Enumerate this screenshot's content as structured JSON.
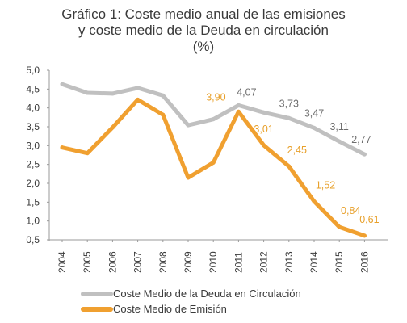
{
  "chart_data": {
    "type": "line",
    "title_line1": "Gráfico 1: Coste medio anual de las emisiones",
    "title_line2": "y coste medio de la Deuda en circulación",
    "title_line3": "(%)",
    "categories": [
      "2004",
      "2005",
      "2006",
      "2007",
      "2008",
      "2009",
      "2010",
      "2011",
      "2012",
      "2013",
      "2014",
      "2015",
      "2016"
    ],
    "ylim": [
      0.5,
      5.0
    ],
    "yticks": [
      "0,5",
      "1,0",
      "1,5",
      "2,0",
      "2,5",
      "3,0",
      "3,5",
      "4,0",
      "4,5",
      "5,0"
    ],
    "grid": false,
    "legend_position": "bottom-left",
    "series": [
      {
        "name": "Coste Medio de la Deuda en Circulación",
        "color": "#c0c0c0",
        "label_color": "#6e6e6e",
        "values": [
          4.63,
          4.4,
          4.38,
          4.53,
          4.33,
          3.54,
          3.7,
          4.07,
          3.88,
          3.73,
          3.47,
          3.11,
          2.77
        ],
        "labels": [
          "",
          "",
          "",
          "",
          "",
          "",
          "",
          "4,07",
          "",
          "3,73",
          "3,47",
          "3,11",
          "2,77"
        ]
      },
      {
        "name": "Coste Medio de Emisión",
        "color": "#f0a030",
        "label_color": "#e8a02a",
        "values": [
          2.95,
          2.8,
          3.48,
          4.22,
          3.82,
          2.15,
          2.55,
          3.9,
          3.01,
          2.45,
          1.52,
          0.84,
          0.61
        ],
        "labels": [
          "",
          "",
          "",
          "",
          "",
          "",
          "",
          "3,90",
          "3,01",
          "2,45",
          "1,52",
          "0,84",
          "0,61"
        ]
      }
    ]
  }
}
